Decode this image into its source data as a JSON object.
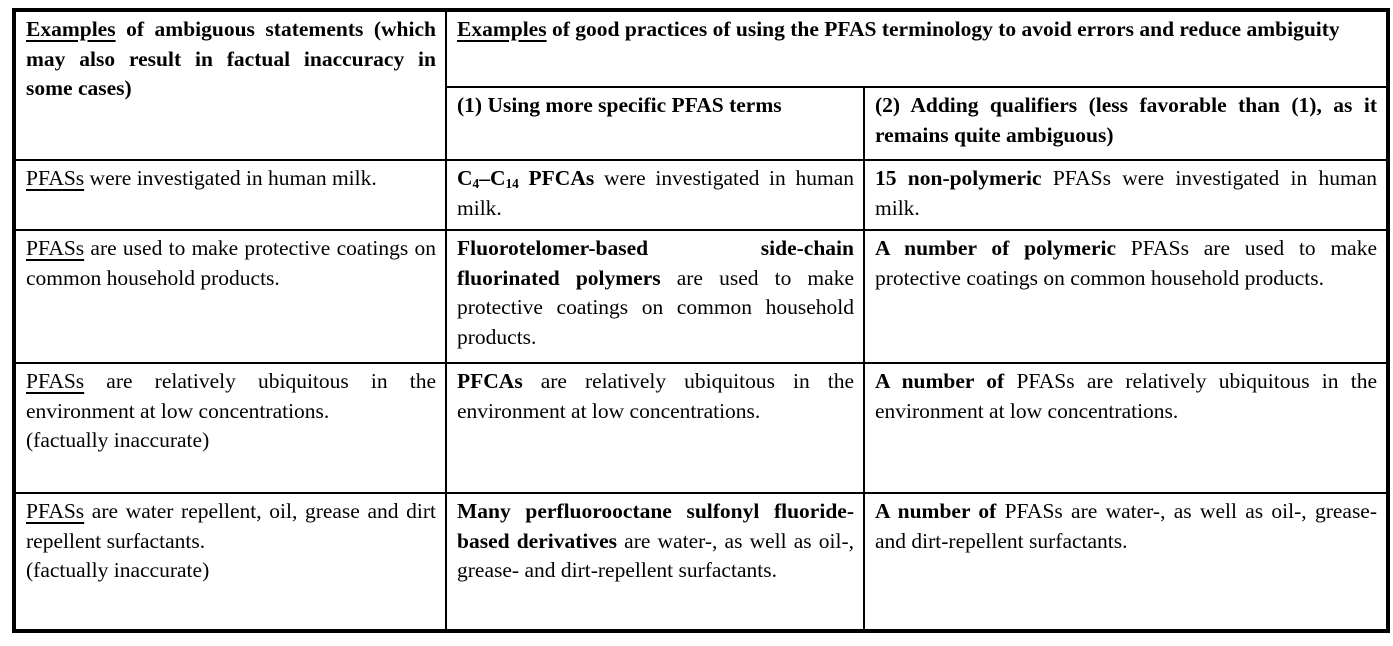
{
  "colors": {
    "text": "#000000",
    "border": "#000000",
    "background": "#ffffff"
  },
  "table": {
    "header": {
      "ambiguous": [
        {
          "t": "Examples",
          "s": "u"
        },
        {
          "t": " of ambiguous statements (which may also result in factual inaccuracy in some cases)"
        }
      ],
      "good_practices": [
        {
          "t": "Examples",
          "s": "u"
        },
        {
          "t": " of good practices of using the PFAS terminology to avoid errors and reduce ambiguity"
        }
      ],
      "method1": [
        {
          "t": "(1) Using more specific PFAS terms"
        }
      ],
      "method2": [
        {
          "t": "(2) Adding qualifiers (less favorable than (1), as it remains quite ambiguous)"
        }
      ]
    },
    "rows": [
      {
        "cells": [
          [
            {
              "t": "PFASs",
              "s": "u"
            },
            {
              "t": " were investigated in human milk."
            }
          ],
          [
            {
              "t": "C",
              "s": "b"
            },
            {
              "t": "4",
              "s": "sub+b"
            },
            {
              "t": "–C",
              "s": "b"
            },
            {
              "t": "14",
              "s": "sub+b"
            },
            {
              "t": " PFCAs",
              "s": "b"
            },
            {
              "t": " were investigated in human milk."
            }
          ],
          [
            {
              "t": "15 non-polymeric",
              "s": "b"
            },
            {
              "t": " PFASs were investigated in human milk."
            }
          ]
        ]
      },
      {
        "cells": [
          [
            {
              "t": "PFASs",
              "s": "u"
            },
            {
              "t": " are used to make protective coatings on common household products."
            }
          ],
          [
            {
              "t": "Fluorotelomer-based side-chain fluorinated polymers",
              "s": "b"
            },
            {
              "t": " are used to make protective coatings on common household products."
            }
          ],
          [
            {
              "t": "A number of polymeric",
              "s": "b"
            },
            {
              "t": " PFASs are used to make protective coatings on common household products."
            }
          ]
        ]
      },
      {
        "cells": [
          [
            {
              "t": "PFASs",
              "s": "u"
            },
            {
              "t": " are relatively ubiquitous in the environment at low concentrations."
            },
            {
              "s": "br"
            },
            {
              "t": "(factually inaccurate)"
            }
          ],
          [
            {
              "t": "PFCAs",
              "s": "b"
            },
            {
              "t": " are relatively ubiquitous in the environment at low concentrations."
            }
          ],
          [
            {
              "t": "A number of",
              "s": "b"
            },
            {
              "t": " PFASs are relatively ubiquitous in the environment at low concentrations."
            }
          ]
        ]
      },
      {
        "cells": [
          [
            {
              "t": "PFASs",
              "s": "u"
            },
            {
              "t": " are water repellent, oil, grease and dirt repellent surfactants."
            },
            {
              "s": "br"
            },
            {
              "t": "(factually inaccurate)"
            }
          ],
          [
            {
              "t": "Many perfluorooctane sulfonyl fluoride-based derivatives",
              "s": "b"
            },
            {
              "t": " are water-, as well as oil-, grease- and dirt-repellent surfactants."
            }
          ],
          [
            {
              "t": "A number of",
              "s": "b"
            },
            {
              "t": " PFASs are water-, as well as oil-, grease- and dirt-repellent surfactants."
            }
          ]
        ]
      }
    ]
  }
}
